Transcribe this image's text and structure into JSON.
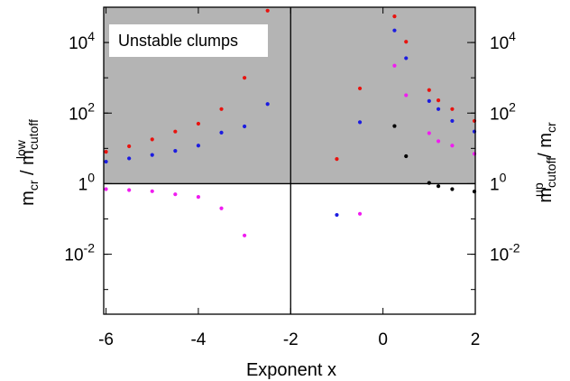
{
  "chart_data": {
    "type": "scatter",
    "title": "",
    "xlabel": "Exponent x",
    "ylabel_left": {
      "main": "m",
      "sub1": "cr",
      "sep": " / m",
      "sub2": "cutoff",
      "sup2": "low"
    },
    "ylabel_right": {
      "main": "m",
      "sub1": "cutoff",
      "sup1": "up",
      "sep": " / m",
      "sub2": "cr"
    },
    "annotation": "Unstable clumps",
    "xlim": [
      -6.05,
      2.0
    ],
    "ylim": [
      0.0002,
      100000
    ],
    "yscale": "log",
    "grid": false,
    "shaded_region": {
      "y_from": 1,
      "y_to": 100000,
      "color": "#b4b4b4"
    },
    "reference_lines": {
      "x": -2,
      "y": 1
    },
    "x_ticks": [
      {
        "value": -6,
        "label": "-6"
      },
      {
        "value": -4,
        "label": "-4"
      },
      {
        "value": -2,
        "label": "-2"
      },
      {
        "value": 0,
        "label": "0"
      },
      {
        "value": 2,
        "label": "2"
      }
    ],
    "y_ticks": [
      {
        "value": 0.01,
        "base": "10",
        "exp": "-2"
      },
      {
        "value": 1,
        "base": "1",
        "exp": "0"
      },
      {
        "value": 100,
        "base": "10",
        "exp": "2"
      },
      {
        "value": 10000,
        "base": "10",
        "exp": "4"
      }
    ],
    "series": [
      {
        "color": "#e8130f",
        "points": [
          [
            -6.0,
            8.0
          ],
          [
            -5.5,
            11.5
          ],
          [
            -5.0,
            18.0
          ],
          [
            -4.5,
            30.0
          ],
          [
            -4.0,
            50.0
          ],
          [
            -3.5,
            130.0
          ],
          [
            -3.0,
            1000.0
          ],
          [
            -2.5,
            80000.0
          ],
          [
            -1.0,
            5.0
          ],
          [
            -0.5,
            500.0
          ],
          [
            0.25,
            55000.0
          ],
          [
            0.5,
            10500.0
          ],
          [
            1.0,
            450.0
          ],
          [
            1.2,
            230.0
          ],
          [
            1.5,
            130.0
          ],
          [
            2.0,
            60.0
          ]
        ]
      },
      {
        "color": "#1c1ce0",
        "points": [
          [
            -6.0,
            4.2
          ],
          [
            -5.5,
            5.2
          ],
          [
            -5.0,
            6.5
          ],
          [
            -4.5,
            8.5
          ],
          [
            -4.0,
            12.0
          ],
          [
            -3.5,
            28.0
          ],
          [
            -3.0,
            42.0
          ],
          [
            -2.5,
            180.0
          ],
          [
            -1.0,
            0.13
          ],
          [
            -0.5,
            55.0
          ],
          [
            0.25,
            22000.0
          ],
          [
            0.5,
            3600.0
          ],
          [
            1.0,
            220.0
          ],
          [
            1.2,
            130.0
          ],
          [
            1.5,
            60.0
          ],
          [
            2.0,
            30.0
          ]
        ]
      },
      {
        "color": "#f01cf0",
        "points": [
          [
            -6.0,
            0.7
          ],
          [
            -5.5,
            0.66
          ],
          [
            -5.0,
            0.61
          ],
          [
            -4.5,
            0.5
          ],
          [
            -4.0,
            0.42
          ],
          [
            -3.5,
            0.2
          ],
          [
            -3.0,
            0.034
          ],
          [
            -0.5,
            0.14
          ],
          [
            0.25,
            2200.0
          ],
          [
            0.5,
            320.0
          ],
          [
            1.0,
            27.0
          ],
          [
            1.2,
            16.0
          ],
          [
            1.5,
            12.0
          ],
          [
            2.0,
            7.0
          ]
        ]
      },
      {
        "color": "#000000",
        "points": [
          [
            0.25,
            43.0
          ],
          [
            0.5,
            6.0
          ],
          [
            1.0,
            1.05
          ],
          [
            1.2,
            0.85
          ],
          [
            1.5,
            0.7
          ],
          [
            2.0,
            0.6
          ]
        ]
      }
    ]
  }
}
